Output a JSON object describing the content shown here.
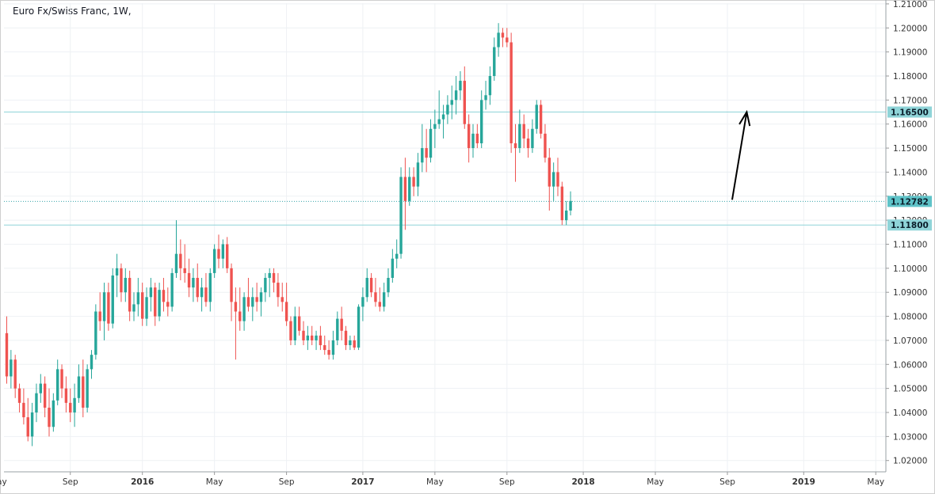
{
  "chart_title": "Euro Fx/Swiss Franc, 1W,",
  "colors": {
    "up": "#26a69a",
    "down": "#ef5350",
    "grid": "#eef1f4",
    "level_line": "#8fd4d8",
    "tag_bg": "#8fd4d8",
    "current_tag_bg": "#5fc3c8",
    "arrow": "#000000"
  },
  "chart_data": {
    "type": "candlestick",
    "title": "Euro Fx/Swiss Franc, 1W,",
    "ylim": [
      1.015,
      1.21
    ],
    "y_ticks": [
      "1.02000",
      "1.03000",
      "1.04000",
      "1.05000",
      "1.06000",
      "1.07000",
      "1.08000",
      "1.09000",
      "1.10000",
      "1.11000",
      "1.12000",
      "1.13000",
      "1.14000",
      "1.15000",
      "1.16000",
      "1.17000",
      "1.18000",
      "1.19000",
      "1.20000",
      "1.21000"
    ],
    "x_ticks": [
      "May",
      "Sep",
      "2016",
      "May",
      "Sep",
      "2017",
      "May",
      "Sep",
      "2018",
      "May",
      "Sep",
      "2019",
      "May"
    ],
    "x_tick_weeks": [
      -2,
      15,
      32,
      49,
      66,
      84,
      101,
      118,
      136,
      153,
      170,
      188,
      205
    ],
    "levels": [
      {
        "label": "1.16500",
        "value": 1.165,
        "style": "solid"
      },
      {
        "label": "1.11800",
        "value": 1.118,
        "style": "solid"
      }
    ],
    "current_price": {
      "label": "1.12782",
      "value": 1.12782,
      "style": "dotted"
    },
    "annotation": "upward arrow from about 1.128 (Sep 2018) toward 1.165",
    "candles": [
      [
        1.073,
        1.08,
        1.052,
        1.055
      ],
      [
        1.055,
        1.066,
        1.05,
        1.062
      ],
      [
        1.062,
        1.064,
        1.046,
        1.05
      ],
      [
        1.05,
        1.052,
        1.04,
        1.044
      ],
      [
        1.044,
        1.05,
        1.035,
        1.038
      ],
      [
        1.038,
        1.046,
        1.028,
        1.03
      ],
      [
        1.03,
        1.044,
        1.026,
        1.04
      ],
      [
        1.04,
        1.052,
        1.036,
        1.048
      ],
      [
        1.048,
        1.056,
        1.044,
        1.052
      ],
      [
        1.052,
        1.055,
        1.038,
        1.042
      ],
      [
        1.042,
        1.05,
        1.03,
        1.034
      ],
      [
        1.034,
        1.048,
        1.032,
        1.045
      ],
      [
        1.045,
        1.062,
        1.043,
        1.058
      ],
      [
        1.058,
        1.06,
        1.046,
        1.05
      ],
      [
        1.05,
        1.055,
        1.04,
        1.044
      ],
      [
        1.044,
        1.05,
        1.036,
        1.04
      ],
      [
        1.04,
        1.052,
        1.034,
        1.046
      ],
      [
        1.046,
        1.06,
        1.044,
        1.055
      ],
      [
        1.055,
        1.062,
        1.038,
        1.042
      ],
      [
        1.042,
        1.06,
        1.04,
        1.058
      ],
      [
        1.058,
        1.066,
        1.054,
        1.064
      ],
      [
        1.064,
        1.085,
        1.062,
        1.082
      ],
      [
        1.082,
        1.09,
        1.074,
        1.078
      ],
      [
        1.078,
        1.094,
        1.07,
        1.09
      ],
      [
        1.09,
        1.094,
        1.074,
        1.077
      ],
      [
        1.077,
        1.1,
        1.075,
        1.097
      ],
      [
        1.097,
        1.106,
        1.088,
        1.1
      ],
      [
        1.1,
        1.102,
        1.086,
        1.09
      ],
      [
        1.09,
        1.1,
        1.086,
        1.096
      ],
      [
        1.096,
        1.099,
        1.078,
        1.082
      ],
      [
        1.082,
        1.09,
        1.078,
        1.085
      ],
      [
        1.085,
        1.096,
        1.08,
        1.09
      ],
      [
        1.09,
        1.094,
        1.076,
        1.079
      ],
      [
        1.079,
        1.092,
        1.076,
        1.088
      ],
      [
        1.088,
        1.096,
        1.082,
        1.092
      ],
      [
        1.092,
        1.094,
        1.076,
        1.08
      ],
      [
        1.08,
        1.094,
        1.078,
        1.091
      ],
      [
        1.091,
        1.096,
        1.082,
        1.086
      ],
      [
        1.086,
        1.092,
        1.08,
        1.084
      ],
      [
        1.084,
        1.1,
        1.082,
        1.098
      ],
      [
        1.098,
        1.12,
        1.096,
        1.106
      ],
      [
        1.106,
        1.112,
        1.095,
        1.1
      ],
      [
        1.1,
        1.11,
        1.094,
        1.098
      ],
      [
        1.098,
        1.104,
        1.088,
        1.092
      ],
      [
        1.092,
        1.1,
        1.086,
        1.096
      ],
      [
        1.096,
        1.102,
        1.086,
        1.088
      ],
      [
        1.088,
        1.096,
        1.082,
        1.092
      ],
      [
        1.092,
        1.098,
        1.084,
        1.086
      ],
      [
        1.086,
        1.1,
        1.082,
        1.098
      ],
      [
        1.098,
        1.11,
        1.096,
        1.108
      ],
      [
        1.108,
        1.114,
        1.1,
        1.104
      ],
      [
        1.104,
        1.112,
        1.1,
        1.11
      ],
      [
        1.11,
        1.113,
        1.098,
        1.1
      ],
      [
        1.1,
        1.102,
        1.078,
        1.086
      ],
      [
        1.086,
        1.092,
        1.062,
        1.082
      ],
      [
        1.082,
        1.092,
        1.074,
        1.078
      ],
      [
        1.078,
        1.09,
        1.074,
        1.088
      ],
      [
        1.088,
        1.096,
        1.082,
        1.084
      ],
      [
        1.084,
        1.092,
        1.078,
        1.088
      ],
      [
        1.088,
        1.094,
        1.082,
        1.086
      ],
      [
        1.086,
        1.092,
        1.08,
        1.09
      ],
      [
        1.09,
        1.098,
        1.086,
        1.096
      ],
      [
        1.096,
        1.1,
        1.088,
        1.098
      ],
      [
        1.098,
        1.1,
        1.09,
        1.094
      ],
      [
        1.094,
        1.098,
        1.084,
        1.088
      ],
      [
        1.088,
        1.094,
        1.082,
        1.086
      ],
      [
        1.086,
        1.094,
        1.076,
        1.078
      ],
      [
        1.078,
        1.08,
        1.068,
        1.07
      ],
      [
        1.07,
        1.084,
        1.068,
        1.08
      ],
      [
        1.08,
        1.084,
        1.072,
        1.074
      ],
      [
        1.074,
        1.078,
        1.068,
        1.07
      ],
      [
        1.07,
        1.076,
        1.066,
        1.072
      ],
      [
        1.072,
        1.076,
        1.068,
        1.07
      ],
      [
        1.07,
        1.074,
        1.066,
        1.072
      ],
      [
        1.072,
        1.076,
        1.066,
        1.068
      ],
      [
        1.068,
        1.072,
        1.064,
        1.066
      ],
      [
        1.066,
        1.07,
        1.062,
        1.064
      ],
      [
        1.064,
        1.074,
        1.062,
        1.07
      ],
      [
        1.07,
        1.082,
        1.068,
        1.079
      ],
      [
        1.079,
        1.084,
        1.07,
        1.074
      ],
      [
        1.074,
        1.076,
        1.066,
        1.068
      ],
      [
        1.068,
        1.072,
        1.066,
        1.07
      ],
      [
        1.07,
        1.072,
        1.066,
        1.067
      ],
      [
        1.067,
        1.085,
        1.066,
        1.084
      ],
      [
        1.084,
        1.092,
        1.078,
        1.088
      ],
      [
        1.088,
        1.1,
        1.086,
        1.096
      ],
      [
        1.096,
        1.098,
        1.088,
        1.09
      ],
      [
        1.09,
        1.096,
        1.084,
        1.086
      ],
      [
        1.086,
        1.092,
        1.082,
        1.084
      ],
      [
        1.084,
        1.094,
        1.082,
        1.09
      ],
      [
        1.09,
        1.1,
        1.088,
        1.096
      ],
      [
        1.096,
        1.108,
        1.094,
        1.104
      ],
      [
        1.104,
        1.112,
        1.1,
        1.106
      ],
      [
        1.106,
        1.142,
        1.104,
        1.138
      ],
      [
        1.138,
        1.146,
        1.116,
        1.128
      ],
      [
        1.128,
        1.142,
        1.126,
        1.138
      ],
      [
        1.138,
        1.142,
        1.13,
        1.134
      ],
      [
        1.134,
        1.148,
        1.13,
        1.144
      ],
      [
        1.144,
        1.16,
        1.14,
        1.15
      ],
      [
        1.15,
        1.158,
        1.14,
        1.146
      ],
      [
        1.146,
        1.162,
        1.144,
        1.158
      ],
      [
        1.158,
        1.166,
        1.15,
        1.16
      ],
      [
        1.16,
        1.174,
        1.158,
        1.162
      ],
      [
        1.162,
        1.168,
        1.154,
        1.164
      ],
      [
        1.164,
        1.172,
        1.16,
        1.168
      ],
      [
        1.168,
        1.176,
        1.162,
        1.17
      ],
      [
        1.17,
        1.18,
        1.164,
        1.174
      ],
      [
        1.174,
        1.182,
        1.17,
        1.178
      ],
      [
        1.178,
        1.184,
        1.158,
        1.16
      ],
      [
        1.16,
        1.164,
        1.144,
        1.15
      ],
      [
        1.15,
        1.16,
        1.146,
        1.156
      ],
      [
        1.156,
        1.16,
        1.15,
        1.152
      ],
      [
        1.152,
        1.174,
        1.15,
        1.17
      ],
      [
        1.17,
        1.178,
        1.166,
        1.172
      ],
      [
        1.172,
        1.184,
        1.168,
        1.18
      ],
      [
        1.18,
        1.196,
        1.178,
        1.192
      ],
      [
        1.192,
        1.202,
        1.188,
        1.198
      ],
      [
        1.198,
        1.2,
        1.192,
        1.196
      ],
      [
        1.196,
        1.2,
        1.192,
        1.194
      ],
      [
        1.194,
        1.198,
        1.148,
        1.152
      ],
      [
        1.152,
        1.16,
        1.136,
        1.15
      ],
      [
        1.15,
        1.166,
        1.148,
        1.16
      ],
      [
        1.16,
        1.164,
        1.15,
        1.154
      ],
      [
        1.154,
        1.158,
        1.146,
        1.15
      ],
      [
        1.15,
        1.162,
        1.148,
        1.158
      ],
      [
        1.158,
        1.17,
        1.156,
        1.168
      ],
      [
        1.168,
        1.17,
        1.154,
        1.156
      ],
      [
        1.156,
        1.16,
        1.144,
        1.146
      ],
      [
        1.146,
        1.15,
        1.124,
        1.134
      ],
      [
        1.134,
        1.144,
        1.128,
        1.14
      ],
      [
        1.14,
        1.146,
        1.13,
        1.134
      ],
      [
        1.134,
        1.136,
        1.118,
        1.12
      ],
      [
        1.12,
        1.128,
        1.118,
        1.124
      ],
      [
        1.124,
        1.132,
        1.122,
        1.128
      ]
    ]
  }
}
